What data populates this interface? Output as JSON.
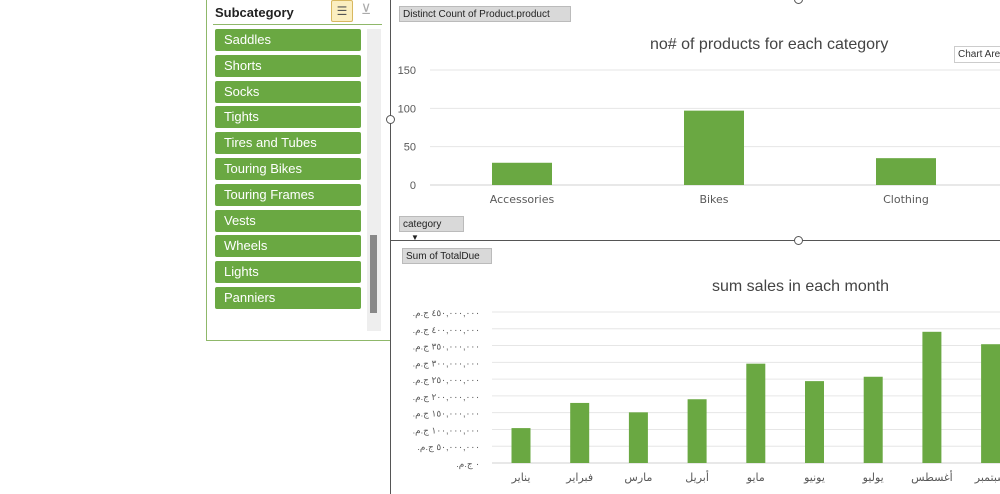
{
  "slicer": {
    "title": "Subcategory",
    "items": [
      "Saddles",
      "Shorts",
      "Socks",
      "Tights",
      "Tires and Tubes",
      "Touring Bikes",
      "Touring Frames",
      "Vests",
      "Wheels",
      "Lights",
      "Panniers"
    ]
  },
  "top_chart": {
    "field_button": "Distinct Count of Product.product",
    "axis_field_button": "category",
    "tooltip": "Chart Area"
  },
  "bottom_chart": {
    "field_button": "Sum of TotalDue"
  },
  "colors": {
    "bar": "#6aa842",
    "slicer_item": "#6aa842"
  },
  "chart_data": [
    {
      "type": "bar",
      "title": "no# of products for each category",
      "categories": [
        "Accessories",
        "Bikes",
        "Clothing"
      ],
      "values": [
        29,
        97,
        35
      ],
      "ylim": [
        0,
        150
      ],
      "yticks": [
        "0",
        "50",
        "100",
        "150"
      ],
      "grid": true
    },
    {
      "type": "bar",
      "title": "sum sales in each month",
      "categories": [
        "يناير",
        "فبراير",
        "مارس",
        "أبريل",
        "مايو",
        "يونيو",
        "يوليو",
        "أغسطس",
        "سبتمبر"
      ],
      "values": [
        104000000,
        179000000,
        151000000,
        190000000,
        296000000,
        244000000,
        257000000,
        391000000,
        354000000
      ],
      "ylim": [
        0,
        450000000
      ],
      "yticks": [
        "‏٠ ج.م.‏",
        "‏٥٠,٠٠٠,٠٠٠ ج.م.‏",
        "‏١٠٠,٠٠٠,٠٠٠ ج.م.‏",
        "‏١٥٠,٠٠٠,٠٠٠ ج.م.‏",
        "‏٢٠٠,٠٠٠,٠٠٠ ج.م.‏",
        "‏٢٥٠,٠٠٠,٠٠٠ ج.م.‏",
        "‏٣٠٠,٠٠٠,٠٠٠ ج.م.‏",
        "‏٣٥٠,٠٠٠,٠٠٠ ج.م.‏",
        "‏٤٠٠,٠٠٠,٠٠٠ ج.م.‏",
        "‏٤٥٠,٠٠٠,٠٠٠ ج.م.‏"
      ],
      "grid": true
    }
  ]
}
